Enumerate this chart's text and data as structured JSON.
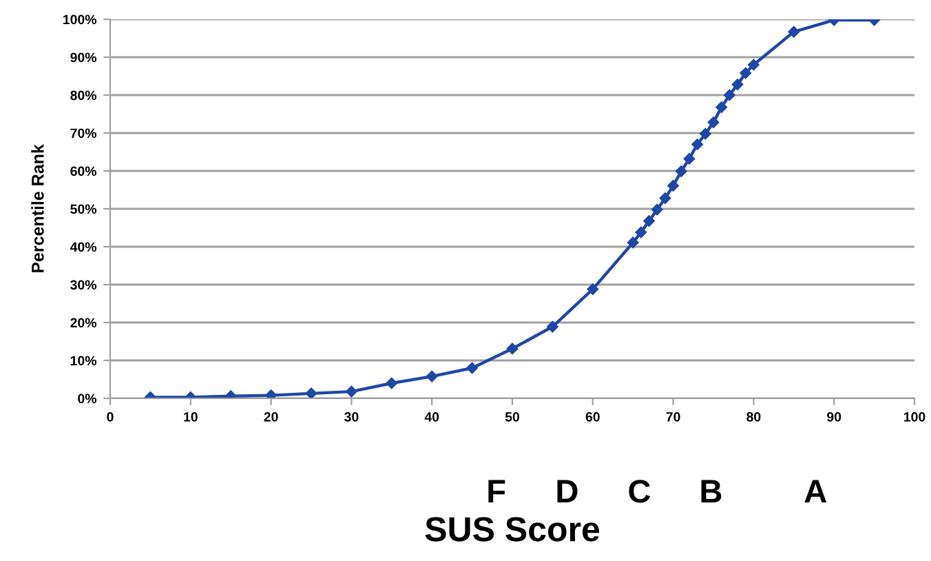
{
  "chart_data": {
    "type": "line",
    "xlabel": "SUS Score",
    "ylabel": "Percentile Rank",
    "x": [
      5,
      10,
      15,
      20,
      25,
      30,
      35,
      40,
      45,
      50,
      55,
      60,
      65,
      66,
      67,
      68,
      69,
      70,
      71,
      72,
      73,
      74,
      75,
      76,
      77,
      78,
      79,
      80,
      85,
      90,
      95
    ],
    "series": [
      {
        "color": "#1f48a6",
        "values": [
          0.3,
          0.3,
          0.6,
          0.8,
          1.3,
          1.8,
          4,
          5.8,
          8,
          13.1,
          18.9,
          28.8,
          41.1,
          43.8,
          46.8,
          49.8,
          52.8,
          56.1,
          59.9,
          63.2,
          67,
          69.8,
          72.8,
          76.8,
          80,
          82.8,
          85.8,
          88,
          96.7,
          99.8,
          99.8
        ]
      }
    ],
    "xlim": [
      0,
      100
    ],
    "xticks": [
      0,
      10,
      20,
      30,
      40,
      50,
      60,
      70,
      80,
      90,
      100
    ],
    "ylim": [
      0,
      100
    ],
    "yticks": [
      {
        "value": 0,
        "label": "0%"
      },
      {
        "value": 10,
        "label": "10%"
      },
      {
        "value": 20,
        "label": "20%"
      },
      {
        "value": 30,
        "label": "30%"
      },
      {
        "value": 40,
        "label": "40%"
      },
      {
        "value": 50,
        "label": "50%"
      },
      {
        "value": 60,
        "label": "60%"
      },
      {
        "value": 70,
        "label": "70%"
      },
      {
        "value": 80,
        "label": "80%"
      },
      {
        "value": 90,
        "label": "90%"
      },
      {
        "value": 100,
        "label": "100%"
      }
    ],
    "grid": "y",
    "marker": "diamond",
    "line_style": "solid",
    "legend": false,
    "annotations": [
      "F",
      "D",
      "C",
      "B",
      "A"
    ]
  }
}
